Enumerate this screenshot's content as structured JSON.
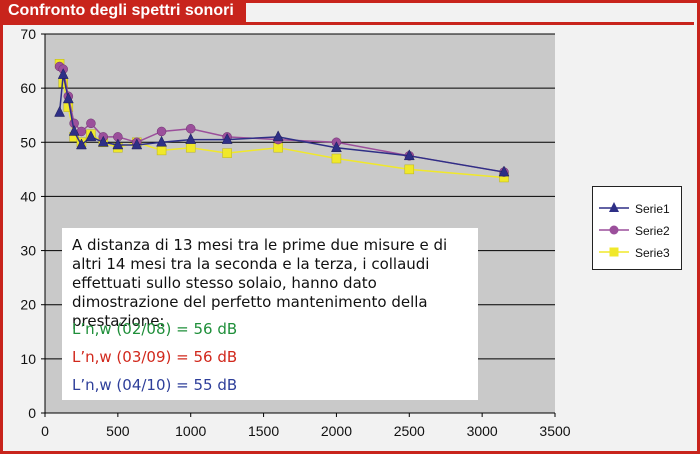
{
  "header": {
    "title": "Confronto degli spettri sonori"
  },
  "note": {
    "paragraph": "A distanza di 13 mesi tra le prime due misure e di altri 14 mesi tra la seconda e la terza, i collaudi effettuati sullo stesso solaio, hanno dato dimostrazione del perfetto mantenimento della prestazione:",
    "measures": [
      {
        "text": "L’n,w (02/08) = 56 dB",
        "color": "#1f8f3a"
      },
      {
        "text": "L’n,w (03/09) = 56 dB",
        "color": "#d1281c"
      },
      {
        "text": "L’n,w (04/10) = 55 dB",
        "color": "#2e3f9a"
      }
    ]
  },
  "chart_data": {
    "type": "line",
    "xlim": [
      0,
      3500
    ],
    "ylim": [
      0,
      70
    ],
    "x_ticks": [
      0,
      500,
      1000,
      1500,
      2000,
      2500,
      3000,
      3500
    ],
    "y_ticks": [
      0,
      10,
      20,
      30,
      40,
      50,
      60,
      70
    ],
    "grid": true,
    "legend_position": "right",
    "x": [
      100,
      125,
      160,
      200,
      250,
      315,
      400,
      500,
      630,
      800,
      1000,
      1250,
      1600,
      2000,
      2500,
      3150
    ],
    "series": [
      {
        "name": "Serie1",
        "color": "#2e2f86",
        "marker": "triangle",
        "values": [
          55.5,
          62.5,
          58,
          52,
          49.5,
          51,
          50,
          49.5,
          49.5,
          50,
          50.5,
          50.5,
          51,
          49,
          47.5,
          44.5
        ]
      },
      {
        "name": "Serie2",
        "color": "#9b4f9b",
        "marker": "circle",
        "values": [
          64,
          63.5,
          58.5,
          53.5,
          52,
          53.5,
          51,
          51,
          50,
          52,
          52.5,
          51,
          50.5,
          50,
          47.5,
          44.5
        ]
      },
      {
        "name": "Serie3",
        "color": "#f0e82a",
        "marker": "square",
        "values": [
          64.5,
          61,
          56.5,
          51,
          50,
          51.5,
          50,
          49,
          50,
          48.5,
          49,
          48,
          49,
          47,
          45,
          43.5
        ]
      }
    ]
  }
}
